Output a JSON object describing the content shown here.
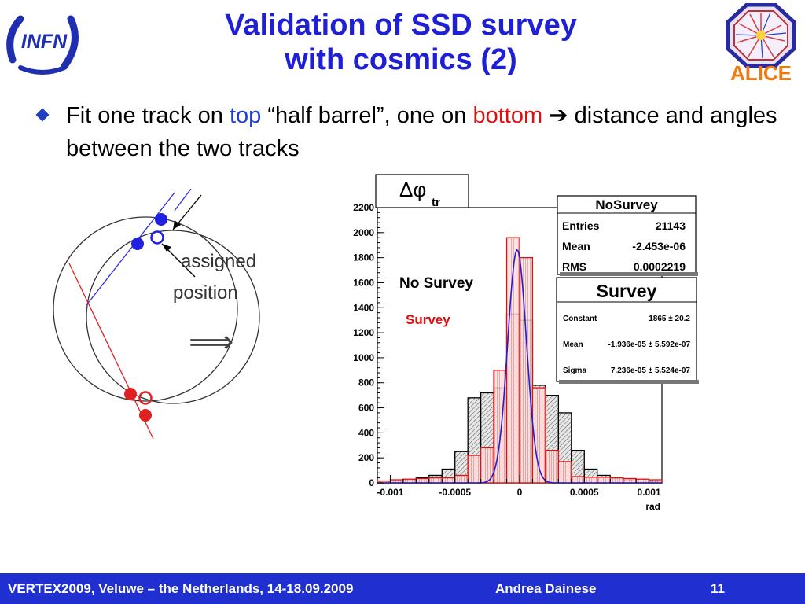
{
  "slide": {
    "title_line1": "Validation of SSD survey",
    "title_line2": "with cosmics (2)",
    "bullet": {
      "part1": "Fit one track on ",
      "top_word": "top",
      "part2": " “half barrel”, one on ",
      "bottom_word": "bottom",
      "arrow": " ➔ ",
      "part3": "distance and angles between the two tracks"
    },
    "logos": {
      "left": "INFN",
      "right": "ALICE"
    }
  },
  "diagram": {
    "label_line1": "assigned",
    "label_line2": "position",
    "arrow_symbol": "⟹"
  },
  "chart_data": {
    "type": "histogram",
    "title": "Δφtr",
    "title_symbol": "Δφ",
    "title_sub": "tr",
    "xlabel": "rad",
    "xlim": [
      -0.0011,
      0.0011
    ],
    "ylim": [
      0,
      2200
    ],
    "x_ticks": [
      -0.001,
      -0.0005,
      0,
      0.0005,
      0.001
    ],
    "x_tick_labels": [
      "-0.001",
      "-0.0005",
      "0",
      "0.0005",
      "0.001"
    ],
    "y_ticks": [
      0,
      200,
      400,
      600,
      800,
      1000,
      1200,
      1400,
      1600,
      1800,
      2000,
      2200
    ],
    "series": [
      {
        "name": "No Survey",
        "color": "#000000",
        "fill": "#cccccc",
        "x": [
          -0.00105,
          -0.00095,
          -0.00085,
          -0.00075,
          -0.00065,
          -0.00055,
          -0.00045,
          -0.00035,
          -0.00025,
          -0.00015,
          -5e-05,
          5e-05,
          0.00015,
          0.00025,
          0.00035,
          0.00045,
          0.00055,
          0.00065,
          0.00075,
          0.00085,
          0.00095,
          0.00105
        ],
        "values": [
          10,
          15,
          25,
          40,
          60,
          110,
          250,
          680,
          720,
          760,
          1350,
          1300,
          780,
          700,
          560,
          260,
          110,
          60,
          40,
          25,
          15,
          10
        ]
      },
      {
        "name": "Survey",
        "color": "#e01010",
        "fill": "#f4b8b8",
        "x": [
          -0.00105,
          -0.00095,
          -0.00085,
          -0.00075,
          -0.00065,
          -0.00055,
          -0.00045,
          -0.00035,
          -0.00025,
          -0.00015,
          -5e-05,
          5e-05,
          0.00015,
          0.00025,
          0.00035,
          0.00045,
          0.00055,
          0.00065,
          0.00075,
          0.00085,
          0.00095,
          0.00105
        ],
        "values": [
          15,
          25,
          30,
          35,
          40,
          40,
          60,
          220,
          280,
          900,
          1960,
          1800,
          760,
          260,
          170,
          50,
          45,
          45,
          40,
          35,
          30,
          25
        ]
      }
    ],
    "fit_curve": {
      "name": "gaussian-fit",
      "color": "#2020d0",
      "constant": 1865,
      "mean": -1.936e-05,
      "sigma": 7.236e-05
    },
    "annotations": {
      "no_survey": "No Survey",
      "survey": "Survey"
    },
    "stats_nosurvey": {
      "title": "NoSurvey",
      "rows": [
        {
          "label": "Entries",
          "value": "21143"
        },
        {
          "label": "Mean",
          "value": "-2.453e-06"
        },
        {
          "label": "RMS",
          "value": "0.0002219"
        }
      ]
    },
    "stats_survey": {
      "title": "Survey",
      "rows": [
        {
          "label": "Constant",
          "value": "1865 ± 20.2"
        },
        {
          "label": "Mean",
          "value": "-1.936e-05 ± 5.592e-07"
        },
        {
          "label": "Sigma",
          "value": "7.236e-05 ± 5.524e-07"
        }
      ]
    }
  },
  "footer": {
    "conference": "VERTEX2009, Veluwe – the Netherlands, 14-18.09.2009",
    "author": "Andrea Dainese",
    "page": "11"
  }
}
